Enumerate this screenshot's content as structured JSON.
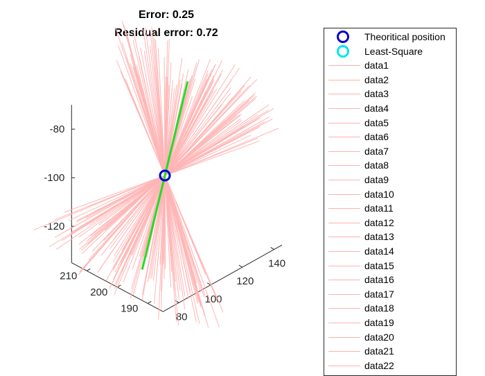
{
  "title_lines": [
    "Error: 0.25",
    "Residual error: 0.72"
  ],
  "colors": {
    "theoretical": "#0000cc",
    "least_square": "#00e5ee",
    "rays": "#ffb6b6",
    "fit_line": "#22dd22",
    "axes": "#262626"
  },
  "chart_data": {
    "type": "line3d",
    "axes": {
      "x": {
        "range": [
          70,
          145
        ],
        "ticks": [
          80,
          100,
          120,
          140
        ],
        "tick_labels": [
          "80",
          "100",
          "120",
          "140"
        ]
      },
      "y": {
        "range": [
          185,
          215
        ],
        "ticks": [
          190,
          200,
          210
        ],
        "tick_labels": [
          "190",
          "200",
          "210"
        ]
      },
      "z": {
        "range": [
          -135,
          -70
        ],
        "ticks": [
          -80,
          -100,
          -120
        ],
        "tick_labels": [
          "-80",
          "-100",
          "-120"
        ]
      }
    },
    "center": {
      "x": 100,
      "y": 200,
      "z": -100
    },
    "ray_count": 120,
    "ray_length": 45,
    "series": [
      {
        "name": "Theoritical position",
        "marker": "circle",
        "x": 100,
        "y": 200,
        "z": -100
      },
      {
        "name": "Least-Square",
        "marker": "circle",
        "x": 100,
        "y": 200,
        "z": -100
      },
      {
        "name": "fit-line",
        "points": [
          [
            78,
            196,
            -128
          ],
          [
            122,
            204,
            -72
          ]
        ]
      }
    ],
    "legend": {
      "position": "right",
      "entries": [
        "Theoritical position",
        "Least-Square",
        "data1",
        "data2",
        "data3",
        "data4",
        "data5",
        "data6",
        "data7",
        "data8",
        "data9",
        "data10",
        "data11",
        "data12",
        "data13",
        "data14",
        "data15",
        "data16",
        "data17",
        "data18",
        "data19",
        "data20",
        "data21",
        "data22"
      ]
    }
  }
}
